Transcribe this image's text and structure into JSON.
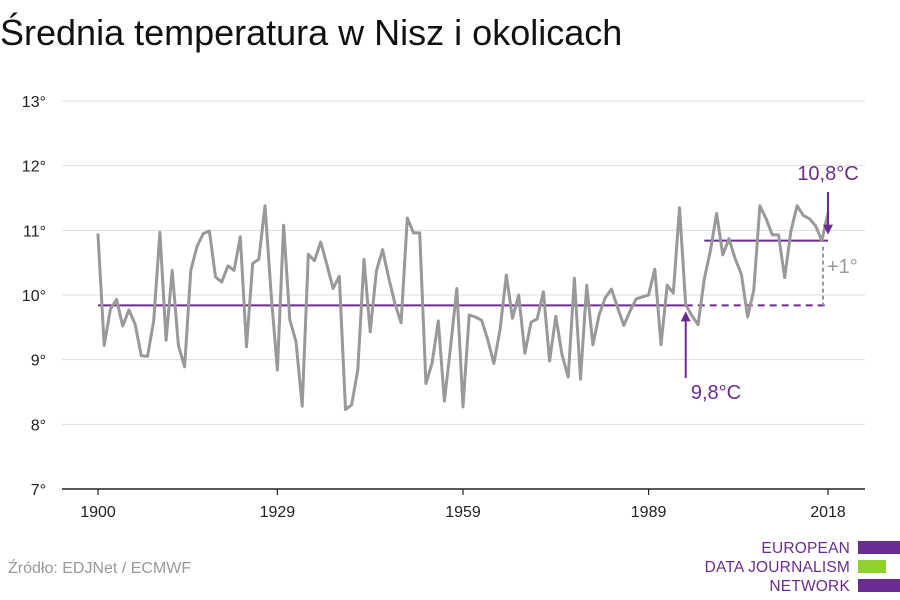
{
  "chart_data": {
    "type": "line",
    "title": "Średnia temperatura w Nisz i okolicach",
    "xlabel": "",
    "ylabel": "",
    "xlim": [
      1900,
      2018
    ],
    "ylim": [
      7,
      13
    ],
    "xticks": [
      1900,
      1929,
      1959,
      1989,
      2018
    ],
    "yticks": [
      7,
      8,
      9,
      10,
      11,
      12,
      13
    ],
    "ytick_labels": [
      "7°",
      "8°",
      "9°",
      "10°",
      "11°",
      "12°",
      "13°"
    ],
    "grid": true,
    "series": [
      {
        "color": "#999999",
        "x": [
          1900,
          1901,
          1902,
          1903,
          1904,
          1905,
          1906,
          1907,
          1908,
          1909,
          1910,
          1911,
          1912,
          1913,
          1914,
          1915,
          1916,
          1917,
          1918,
          1919,
          1920,
          1921,
          1922,
          1923,
          1924,
          1925,
          1926,
          1927,
          1928,
          1929,
          1930,
          1931,
          1932,
          1933,
          1934,
          1935,
          1936,
          1937,
          1938,
          1939,
          1940,
          1941,
          1942,
          1943,
          1944,
          1945,
          1946,
          1947,
          1948,
          1949,
          1950,
          1951,
          1952,
          1953,
          1954,
          1955,
          1956,
          1957,
          1958,
          1959,
          1960,
          1961,
          1962,
          1963,
          1964,
          1965,
          1966,
          1967,
          1968,
          1969,
          1970,
          1971,
          1972,
          1973,
          1974,
          1975,
          1976,
          1977,
          1978,
          1979,
          1980,
          1981,
          1982,
          1983,
          1984,
          1985,
          1986,
          1987,
          1988,
          1989,
          1990,
          1991,
          1992,
          1993,
          1994,
          1995,
          1996,
          1997,
          1998,
          1999,
          2000,
          2001,
          2002,
          2003,
          2004,
          2005,
          2006,
          2007,
          2008,
          2009,
          2010,
          2011,
          2012,
          2013,
          2014,
          2015,
          2016,
          2017,
          2018
        ],
        "values": [
          10.93,
          9.22,
          9.78,
          9.93,
          9.52,
          9.77,
          9.55,
          9.06,
          9.05,
          9.6,
          10.97,
          9.3,
          10.38,
          9.22,
          8.89,
          10.38,
          10.75,
          10.95,
          10.99,
          10.28,
          10.2,
          10.45,
          10.38,
          10.9,
          9.2,
          10.49,
          10.55,
          11.38,
          10.0,
          8.84,
          11.08,
          9.62,
          9.28,
          8.28,
          10.63,
          10.53,
          10.82,
          10.47,
          10.1,
          10.29,
          8.23,
          8.3,
          8.84,
          10.55,
          9.43,
          10.37,
          10.7,
          10.26,
          9.87,
          9.57,
          11.19,
          10.96,
          10.96,
          8.63,
          8.95,
          9.6,
          8.36,
          9.2,
          10.1,
          8.27,
          9.69,
          9.66,
          9.61,
          9.31,
          8.94,
          9.47,
          10.31,
          9.64,
          10.0,
          9.1,
          9.58,
          9.63,
          10.05,
          8.98,
          9.67,
          9.08,
          8.73,
          10.26,
          8.7,
          10.15,
          9.23,
          9.69,
          9.96,
          10.09,
          9.8,
          9.53,
          9.75,
          9.94,
          9.97,
          10.0,
          10.4,
          9.23,
          10.15,
          10.03,
          11.35,
          9.85,
          9.68,
          9.54,
          10.25,
          10.69,
          11.26,
          10.62,
          10.87,
          10.56,
          10.32,
          9.66,
          10.08,
          11.38,
          11.18,
          10.93,
          10.93,
          10.27,
          10.99,
          11.38,
          11.23,
          11.18,
          11.07,
          10.84,
          11.27
        ]
      }
    ],
    "baselines": [
      {
        "label": "9,8°C",
        "value": 9.84,
        "from": 1900,
        "to": 2018,
        "dashed_from": 1995,
        "color": "#6b2c91"
      },
      {
        "label": "10,8°C",
        "value": 10.84,
        "from": 1998,
        "to": 2018,
        "color": "#6b2c91"
      }
    ],
    "difference_label": "+1°"
  },
  "source": "Źródło: EDJNet / ECMWF",
  "logo": {
    "lines": [
      "EUROPEAN",
      "DATA JOURNALISM",
      "NETWORK"
    ],
    "colors": {
      "purple": "#6b2c91",
      "green": "#8fd12f"
    }
  }
}
